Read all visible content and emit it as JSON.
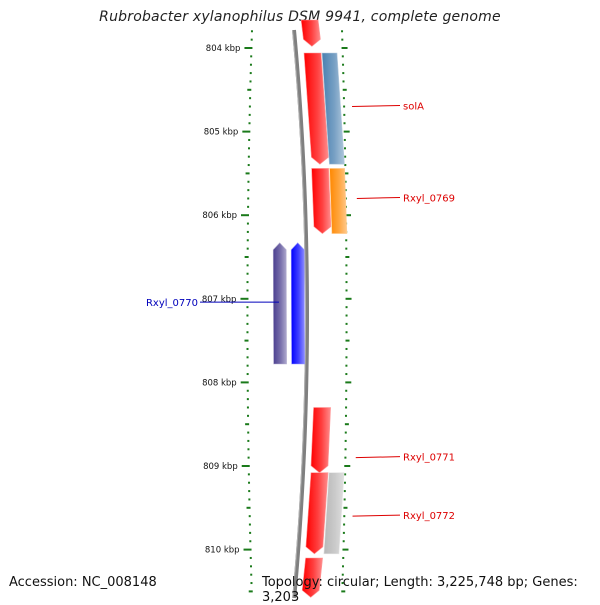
{
  "title": "Rubrobacter xylanophilus DSM 9941, complete genome",
  "accession_text": "Accession: NC_008148",
  "topology_text": "Topology: circular; Length: 3,225,748 bp; Genes: 3,203",
  "colors": {
    "backbone": "#808080",
    "tick": "#1a7a1a",
    "label_red": "#dd0000",
    "label_blue": "#0000bb",
    "gene_red": "#ff0000",
    "gene_blue": "#0000ff",
    "gene_purple": "#4b3f8f",
    "gene_steelblue": "#4a80b0",
    "gene_orange": "#ff8800",
    "gene_gray": "#b8b8b8"
  },
  "map": {
    "range_kbp": [
      803.53,
      810.57
    ],
    "tick_labels": [
      {
        "kbp": 804,
        "text": "804 kbp"
      },
      {
        "kbp": 805,
        "text": "805 kbp"
      },
      {
        "kbp": 806,
        "text": "806 kbp"
      },
      {
        "kbp": 807,
        "text": "807 kbp"
      },
      {
        "kbp": 808,
        "text": "808 kbp"
      },
      {
        "kbp": 809,
        "text": "809 kbp"
      },
      {
        "kbp": 810,
        "text": "810 kbp"
      }
    ],
    "minor_tick_step_kbp": 0.1,
    "features": [
      {
        "track": "fwd-inner",
        "start_kbp": 803.53,
        "end_kbp": 803.98,
        "strand": "-",
        "color": "#ff0000"
      },
      {
        "track": "fwd-inner",
        "start_kbp": 804.06,
        "end_kbp": 805.39,
        "strand": "-",
        "color": "#ff0000"
      },
      {
        "track": "fwd-outer",
        "start_kbp": 804.06,
        "end_kbp": 805.39,
        "strand": "+",
        "color": "#4a80b0",
        "label": "solA"
      },
      {
        "track": "fwd-inner",
        "start_kbp": 805.44,
        "end_kbp": 806.22,
        "strand": "-",
        "color": "#ff0000"
      },
      {
        "track": "fwd-outer",
        "start_kbp": 805.44,
        "end_kbp": 806.22,
        "strand": "+",
        "color": "#ff8800",
        "label": "Rxyl_0769"
      },
      {
        "track": "rev-inner",
        "start_kbp": 806.33,
        "end_kbp": 807.78,
        "strand": "+",
        "color": "#0000ff"
      },
      {
        "track": "rev-outer",
        "start_kbp": 806.33,
        "end_kbp": 807.78,
        "strand": "+",
        "color": "#4b3f8f",
        "label": "Rxyl_0770"
      },
      {
        "track": "fwd-inner",
        "start_kbp": 808.3,
        "end_kbp": 809.08,
        "strand": "-",
        "color": "#ff0000",
        "label": "Rxyl_0771"
      },
      {
        "track": "fwd-inner",
        "start_kbp": 809.08,
        "end_kbp": 810.05,
        "strand": "-",
        "color": "#ff0000"
      },
      {
        "track": "fwd-outer",
        "start_kbp": 809.08,
        "end_kbp": 810.05,
        "strand": "+",
        "color": "#b8b8b8",
        "label": "Rxyl_0772"
      },
      {
        "track": "fwd-inner",
        "start_kbp": 810.1,
        "end_kbp": 810.57,
        "strand": "-",
        "color": "#ff0000"
      }
    ]
  }
}
